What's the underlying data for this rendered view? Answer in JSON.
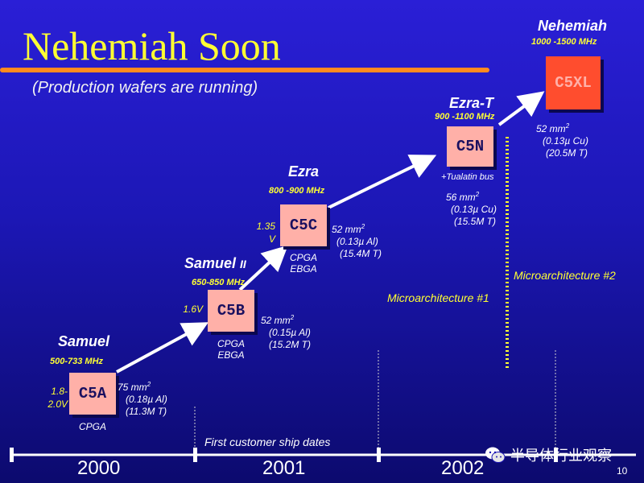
{
  "slide": {
    "title": "Nehemiah Soon",
    "subtitle": "(Production wafers are running)",
    "page_number": "10",
    "watermark": "半导体行业观察",
    "colors": {
      "title": "#ffff33",
      "accent_bar": "#ff8a1f",
      "chip": "#ffb0a8",
      "chip_highlight": "#ff4d2e"
    }
  },
  "processors": [
    {
      "name": "Samuel",
      "name_suffix": "",
      "freq": "500-733 MHz",
      "chip": "C5A",
      "voltage": [
        "1.8-",
        "2.0V"
      ],
      "area": "75 mm",
      "area_sup": "2",
      "process": "(0.18µ Al)",
      "transistors": "(11.3M T)",
      "packages": [
        "CPGA"
      ]
    },
    {
      "name": "Samuel ",
      "name_suffix": "II",
      "freq": "650-850 MHz",
      "chip": "C5B",
      "voltage": [
        "1.6V"
      ],
      "area": "52 mm",
      "area_sup": "2",
      "process": "(0.15µ Al)",
      "transistors": "(15.2M T)",
      "packages": [
        "CPGA",
        "EBGA"
      ]
    },
    {
      "name": "Ezra",
      "name_suffix": "",
      "freq": "800 -900 MHz",
      "chip": "C5C",
      "voltage": [
        "1.35",
        "V"
      ],
      "area": "52 mm",
      "area_sup": "2",
      "process": "(0.13µ Al)",
      "transistors": "(15.4M T)",
      "packages": [
        "CPGA",
        "EBGA"
      ]
    },
    {
      "name": "Ezra-T",
      "name_suffix": "",
      "freq": "900 -1100 MHz",
      "chip": "C5N",
      "note": "+Tualatin bus",
      "area": "56 mm",
      "area_sup": "2",
      "process": "(0.13µ Cu)",
      "transistors": "(15.5M T)"
    },
    {
      "name": "Nehemiah",
      "name_suffix": "",
      "freq": "1000 -1500 MHz",
      "chip": "C5XL",
      "area": "52 mm",
      "area_sup": "2",
      "process": "(0.13µ Cu)",
      "transistors": "(20.5M T)"
    }
  ],
  "microarchitectures": [
    "Microarchitecture #1",
    "Microarchitecture #2"
  ],
  "timeline": {
    "caption": "First customer ship dates",
    "years": [
      "2000",
      "2001",
      "2002"
    ]
  }
}
